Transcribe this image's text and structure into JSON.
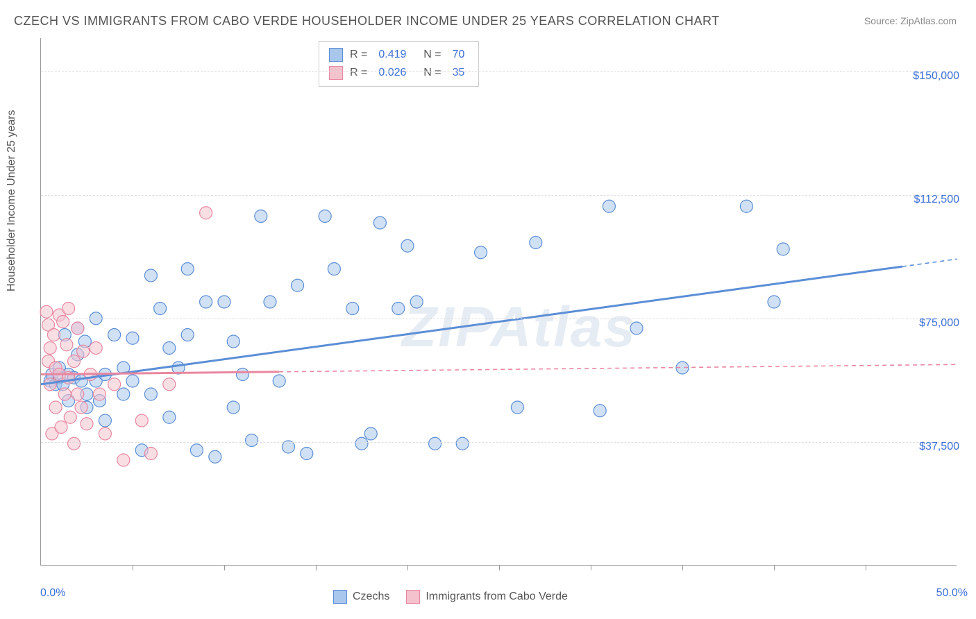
{
  "title": "CZECH VS IMMIGRANTS FROM CABO VERDE HOUSEHOLDER INCOME UNDER 25 YEARS CORRELATION CHART",
  "source": "Source: ZipAtlas.com",
  "ylabel": "Householder Income Under 25 years",
  "watermark": "ZIPAtlas",
  "chart": {
    "type": "scatter",
    "xlim": [
      0,
      50
    ],
    "ylim": [
      0,
      160000
    ],
    "xtick_step": 5,
    "xmin_label": "0.0%",
    "xmax_label": "50.0%",
    "ytick_labels": [
      "$37,500",
      "$75,000",
      "$112,500",
      "$150,000"
    ],
    "ytick_values": [
      37500,
      75000,
      112500,
      150000
    ],
    "grid_color": "#dcdcdc",
    "background_color": "#ffffff",
    "marker_radius": 9,
    "marker_opacity": 0.55,
    "series": [
      {
        "name": "Czechs",
        "color_fill": "#a9c6ec",
        "color_stroke": "#5b8ed6",
        "r": 0.419,
        "n": 70,
        "trend": {
          "x0": 0,
          "y0": 55000,
          "x1": 50,
          "y1": 93000,
          "extrap_x": 50,
          "solid_until_x": 47
        },
        "points": [
          [
            0.5,
            56000
          ],
          [
            0.6,
            58000
          ],
          [
            0.8,
            55000
          ],
          [
            1.0,
            57000
          ],
          [
            1.0,
            60000
          ],
          [
            1.2,
            55000
          ],
          [
            1.3,
            70000
          ],
          [
            1.5,
            58000
          ],
          [
            1.5,
            50000
          ],
          [
            1.8,
            57000
          ],
          [
            2.0,
            64000
          ],
          [
            2.0,
            72000
          ],
          [
            2.2,
            56000
          ],
          [
            2.4,
            68000
          ],
          [
            2.5,
            48000
          ],
          [
            2.5,
            52000
          ],
          [
            3.0,
            56000
          ],
          [
            3.0,
            75000
          ],
          [
            3.2,
            50000
          ],
          [
            3.5,
            58000
          ],
          [
            3.5,
            44000
          ],
          [
            4.0,
            70000
          ],
          [
            4.5,
            52000
          ],
          [
            4.5,
            60000
          ],
          [
            5.0,
            56000
          ],
          [
            5.0,
            69000
          ],
          [
            5.5,
            35000
          ],
          [
            6.0,
            52000
          ],
          [
            6.0,
            88000
          ],
          [
            6.5,
            78000
          ],
          [
            7.0,
            45000
          ],
          [
            7.0,
            66000
          ],
          [
            7.5,
            60000
          ],
          [
            8.0,
            90000
          ],
          [
            8.0,
            70000
          ],
          [
            8.5,
            35000
          ],
          [
            9.0,
            80000
          ],
          [
            9.5,
            33000
          ],
          [
            10.0,
            80000
          ],
          [
            10.5,
            48000
          ],
          [
            10.5,
            68000
          ],
          [
            11.0,
            58000
          ],
          [
            11.5,
            38000
          ],
          [
            12.0,
            106000
          ],
          [
            12.5,
            80000
          ],
          [
            13.0,
            56000
          ],
          [
            13.5,
            36000
          ],
          [
            14.0,
            85000
          ],
          [
            14.5,
            34000
          ],
          [
            15.5,
            106000
          ],
          [
            16.0,
            90000
          ],
          [
            17.0,
            78000
          ],
          [
            17.5,
            37000
          ],
          [
            18.0,
            40000
          ],
          [
            18.5,
            104000
          ],
          [
            19.5,
            78000
          ],
          [
            20.0,
            97000
          ],
          [
            20.5,
            80000
          ],
          [
            21.5,
            37000
          ],
          [
            23.0,
            37000
          ],
          [
            24.0,
            95000
          ],
          [
            26.0,
            48000
          ],
          [
            27.0,
            98000
          ],
          [
            30.5,
            47000
          ],
          [
            31.0,
            109000
          ],
          [
            32.5,
            72000
          ],
          [
            35.0,
            60000
          ],
          [
            38.5,
            109000
          ],
          [
            40.0,
            80000
          ],
          [
            40.5,
            96000
          ]
        ]
      },
      {
        "name": "Immigrants from Cabo Verde",
        "color_fill": "#f4c2cd",
        "color_stroke": "#e987a0",
        "r": 0.026,
        "n": 35,
        "trend": {
          "x0": 0,
          "y0": 58000,
          "x1": 50,
          "y1": 61000,
          "extrap_x": 50,
          "solid_until_x": 13
        },
        "points": [
          [
            0.3,
            77000
          ],
          [
            0.4,
            73000
          ],
          [
            0.4,
            62000
          ],
          [
            0.5,
            66000
          ],
          [
            0.5,
            55000
          ],
          [
            0.6,
            40000
          ],
          [
            0.7,
            70000
          ],
          [
            0.8,
            48000
          ],
          [
            0.8,
            60000
          ],
          [
            1.0,
            76000
          ],
          [
            1.0,
            58000
          ],
          [
            1.1,
            42000
          ],
          [
            1.2,
            74000
          ],
          [
            1.3,
            52000
          ],
          [
            1.4,
            67000
          ],
          [
            1.5,
            57000
          ],
          [
            1.5,
            78000
          ],
          [
            1.6,
            45000
          ],
          [
            1.8,
            62000
          ],
          [
            1.8,
            37000
          ],
          [
            2.0,
            72000
          ],
          [
            2.0,
            52000
          ],
          [
            2.2,
            48000
          ],
          [
            2.3,
            65000
          ],
          [
            2.5,
            43000
          ],
          [
            2.7,
            58000
          ],
          [
            3.0,
            66000
          ],
          [
            3.2,
            52000
          ],
          [
            3.5,
            40000
          ],
          [
            4.0,
            55000
          ],
          [
            4.5,
            32000
          ],
          [
            5.5,
            44000
          ],
          [
            6.0,
            34000
          ],
          [
            7.0,
            55000
          ],
          [
            9.0,
            107000
          ]
        ]
      }
    ]
  },
  "legend_top": {
    "rows": [
      {
        "swatch_fill": "#a9c6ec",
        "swatch_stroke": "#5b8ed6",
        "r": "0.419",
        "n": "70"
      },
      {
        "swatch_fill": "#f4c2cd",
        "swatch_stroke": "#e987a0",
        "r": "0.026",
        "n": "35"
      }
    ]
  },
  "legend_bottom": {
    "items": [
      {
        "swatch_fill": "#a9c6ec",
        "swatch_stroke": "#5b8ed6",
        "label": "Czechs"
      },
      {
        "swatch_fill": "#f4c2cd",
        "swatch_stroke": "#e987a0",
        "label": "Immigrants from Cabo Verde"
      }
    ]
  }
}
